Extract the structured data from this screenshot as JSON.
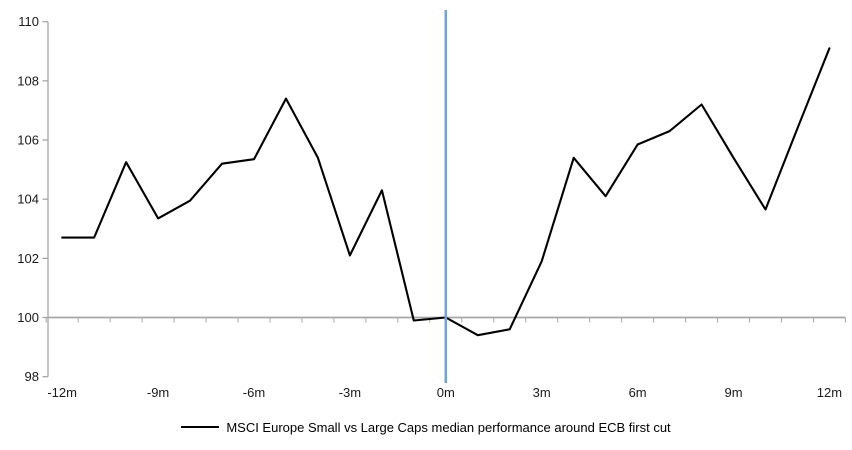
{
  "chart_data": {
    "type": "line",
    "title": "",
    "legend": "MSCI Europe Small vs Large Caps median performance around ECB first cut",
    "legend_position": "bottom",
    "grid": false,
    "x_unit": "months relative to ECB first cut",
    "x": [
      -12,
      -11,
      -10,
      -9,
      -8,
      -7,
      -6,
      -5,
      -4,
      -3,
      -2,
      -1,
      0,
      1,
      2,
      3,
      4,
      5,
      6,
      7,
      8,
      9,
      10,
      11,
      12
    ],
    "series": [
      {
        "name": "MSCI Europe Small vs Large Caps median performance around ECB first cut",
        "color": "#000000",
        "values": [
          102.7,
          102.7,
          105.25,
          103.35,
          103.95,
          105.2,
          105.35,
          107.4,
          105.4,
          102.1,
          104.3,
          99.9,
          100.0,
          99.4,
          99.6,
          101.9,
          105.4,
          104.1,
          105.85,
          106.3,
          107.2,
          105.4,
          103.65,
          106.4,
          109.1
        ]
      }
    ],
    "x_tick_positions": [
      -12,
      -9,
      -6,
      -3,
      0,
      3,
      6,
      9,
      12
    ],
    "x_tick_labels": [
      "-12m",
      "-9m",
      "-6m",
      "-3m",
      "0m",
      "3m",
      "6m",
      "9m",
      "12m"
    ],
    "y_ticks": [
      98,
      100,
      102,
      104,
      106,
      108,
      110
    ],
    "ylim": [
      98,
      110
    ],
    "xlim": [
      -12.5,
      12.5
    ],
    "baseline_value": 100,
    "event_line_x": 0,
    "colors": {
      "series_line": "#000000",
      "event_line": "#74A3D1",
      "axis": "#A6A6A6",
      "tick_text": "#1a1a1a"
    }
  }
}
